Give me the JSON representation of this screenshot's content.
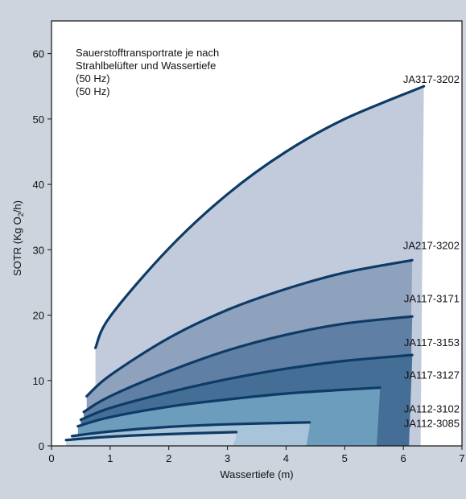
{
  "chart_data": {
    "type": "area",
    "title_lines": [
      "Sauerstofftransportrate je nach",
      "Strahlbelüfter und Wassertiefe",
      "(50 Hz)",
      "(50 Hz)"
    ],
    "xlabel": "Wassertiefe (m)",
    "ylabel": "SOTR (Kg O",
    "ylabel_sub": "2",
    "ylabel_end": "/h)",
    "xlim": [
      0,
      7
    ],
    "ylim": [
      0,
      65
    ],
    "xticks": [
      0,
      1,
      2,
      3,
      4,
      5,
      6,
      7
    ],
    "yticks": [
      0,
      10,
      20,
      30,
      40,
      50,
      60
    ],
    "grid": false,
    "series": [
      {
        "name": "JA112-3085",
        "fill": "#c9d6e4",
        "x": [
          0.25,
          1.0,
          2.0,
          3.15
        ],
        "y": [
          0.9,
          1.4,
          1.8,
          2.1
        ]
      },
      {
        "name": "JA112-3102",
        "fill": "#a8c4da",
        "x": [
          0.35,
          1.0,
          2.0,
          3.0,
          4.4
        ],
        "y": [
          1.5,
          2.2,
          2.9,
          3.3,
          3.6
        ]
      },
      {
        "name": "JA117-3127",
        "fill": "#6c9dbd",
        "x": [
          0.45,
          1.0,
          2.0,
          3.0,
          4.0,
          5.0,
          5.6
        ],
        "y": [
          3.0,
          4.4,
          6.0,
          7.1,
          8.0,
          8.6,
          8.9
        ]
      },
      {
        "name": "JA117-3153",
        "fill": "#456e97",
        "x": [
          0.5,
          1.0,
          2.0,
          3.0,
          4.0,
          5.0,
          6.15
        ],
        "y": [
          4.0,
          5.8,
          8.2,
          10.2,
          11.8,
          13.0,
          13.9
        ]
      },
      {
        "name": "JA117-3171",
        "fill": "#5f7fa4",
        "x": [
          0.55,
          1.0,
          2.0,
          3.0,
          4.0,
          5.0,
          6.15
        ],
        "y": [
          5.2,
          7.6,
          11.4,
          14.6,
          17.0,
          18.7,
          19.8
        ]
      },
      {
        "name": "JA217-3202",
        "fill": "#8ea2be",
        "x": [
          0.6,
          1.0,
          2.0,
          3.0,
          4.0,
          5.0,
          6.15
        ],
        "y": [
          7.6,
          10.8,
          16.5,
          20.8,
          24.0,
          26.5,
          28.4
        ]
      },
      {
        "name": "JA317-3202",
        "fill": "#c2cbdb",
        "x": [
          0.75,
          1.0,
          2.0,
          3.0,
          4.0,
          5.0,
          6.35
        ],
        "y": [
          15.0,
          19.8,
          30.2,
          38.5,
          45.0,
          50.0,
          55.0
        ]
      }
    ],
    "colors": {
      "line": "#0d3b66",
      "background": "#cdd4de",
      "plot_background": "#ffffff"
    }
  }
}
